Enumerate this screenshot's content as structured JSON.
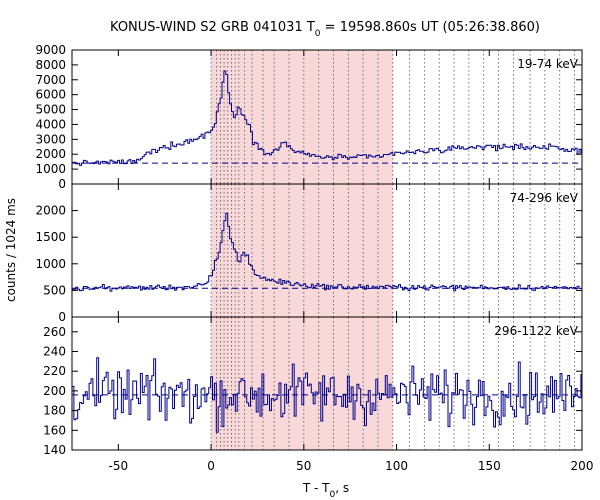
{
  "chart_data": {
    "type": "line",
    "title": "KONUS-WIND S2 GRB 041031 T",
    "title_sub": "0",
    "title_rest": " = 19598.860s UT (05:26:38.860)",
    "xlabel_main": "T - T",
    "xlabel_sub": "0",
    "xlabel_rest": ", s",
    "ylabel": "counts / 1024 ms",
    "xlim": [
      -75,
      200
    ],
    "x_ticks": [
      "-50",
      "0",
      "50",
      "100",
      "150",
      "200"
    ],
    "x_tick_values": [
      -50,
      0,
      50,
      100,
      150,
      200
    ],
    "highlight_interval": [
      0,
      98
    ],
    "highlight_color": "#f8d8d8",
    "line_color": "#00008b",
    "spectrum_boundaries": [
      0,
      3,
      5,
      7,
      9,
      11,
      13,
      15,
      18,
      22,
      28,
      34,
      42,
      50,
      58,
      66,
      74,
      82,
      90,
      98,
      107,
      115,
      123,
      131,
      139,
      147,
      155,
      163,
      172,
      180,
      188,
      196
    ],
    "panels": [
      {
        "band": "19-74 keV",
        "ylim": [
          0,
          9000
        ],
        "y_ticks": [
          "0",
          "1000",
          "2000",
          "3000",
          "4000",
          "5000",
          "6000",
          "7000",
          "8000",
          "9000"
        ],
        "y_tick_values": [
          0,
          1000,
          2000,
          3000,
          4000,
          5000,
          6000,
          7000,
          8000,
          9000
        ],
        "background": 1400,
        "curve": [
          [
            -75,
            1400
          ],
          [
            -40,
            1500
          ],
          [
            -35,
            2000
          ],
          [
            -25,
            2500
          ],
          [
            -15,
            2800
          ],
          [
            -8,
            3000
          ],
          [
            0,
            3600
          ],
          [
            2,
            4000
          ],
          [
            4,
            5000
          ],
          [
            6,
            6500
          ],
          [
            8,
            7900
          ],
          [
            9,
            6800
          ],
          [
            11,
            4800
          ],
          [
            13,
            4300
          ],
          [
            15,
            5600
          ],
          [
            17,
            4700
          ],
          [
            19,
            4200
          ],
          [
            21,
            4100
          ],
          [
            23,
            2800
          ],
          [
            26,
            2400
          ],
          [
            30,
            2200
          ],
          [
            33,
            2100
          ],
          [
            37,
            2500
          ],
          [
            40,
            2800
          ],
          [
            44,
            2300
          ],
          [
            50,
            2000
          ],
          [
            60,
            1800
          ],
          [
            70,
            1800
          ],
          [
            80,
            1800
          ],
          [
            90,
            1800
          ],
          [
            100,
            2100
          ],
          [
            110,
            2100
          ],
          [
            120,
            2300
          ],
          [
            130,
            2300
          ],
          [
            140,
            2500
          ],
          [
            150,
            2500
          ],
          [
            160,
            2500
          ],
          [
            170,
            2500
          ],
          [
            180,
            2500
          ],
          [
            190,
            2300
          ],
          [
            200,
            2200
          ]
        ],
        "noise": 80
      },
      {
        "band": "74-296 keV",
        "ylim": [
          0,
          2500
        ],
        "y_ticks": [
          "0",
          "500",
          "1000",
          "1500",
          "2000"
        ],
        "y_tick_values": [
          0,
          500,
          1000,
          1500,
          2000
        ],
        "background": 540,
        "curve": [
          [
            -75,
            540
          ],
          [
            -10,
            560
          ],
          [
            -2,
            620
          ],
          [
            0,
            760
          ],
          [
            2,
            1000
          ],
          [
            4,
            1150
          ],
          [
            6,
            1450
          ],
          [
            8,
            2050
          ],
          [
            9,
            1850
          ],
          [
            11,
            1400
          ],
          [
            13,
            1250
          ],
          [
            15,
            1000
          ],
          [
            17,
            1200
          ],
          [
            19,
            1220
          ],
          [
            21,
            1000
          ],
          [
            24,
            800
          ],
          [
            30,
            700
          ],
          [
            40,
            650
          ],
          [
            50,
            600
          ],
          [
            70,
            560
          ],
          [
            100,
            560
          ],
          [
            140,
            555
          ],
          [
            200,
            550
          ]
        ],
        "noise": 25
      },
      {
        "band": "296-1122 keV",
        "ylim": [
          140,
          275
        ],
        "y_ticks": [
          "140",
          "160",
          "180",
          "200",
          "220",
          "240",
          "260"
        ],
        "y_tick_values": [
          140,
          160,
          180,
          200,
          220,
          240,
          260
        ],
        "background": 196,
        "curve": [
          [
            -75,
            196
          ],
          [
            200,
            196
          ]
        ],
        "noise": 14
      }
    ]
  }
}
